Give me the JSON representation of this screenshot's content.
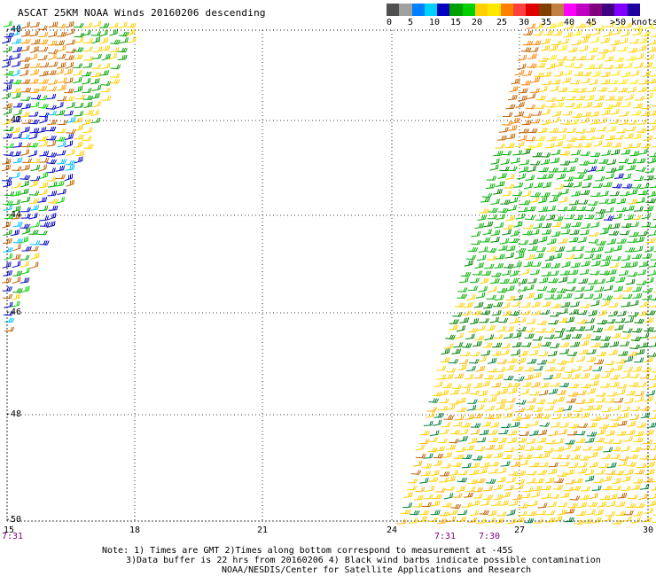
{
  "header": {
    "title": "ASCAT 25KM NOAA Winds 20160206 descending"
  },
  "legend": {
    "labels": [
      "0",
      "5",
      "10",
      "15",
      "20",
      "25",
      "30",
      "35",
      "40",
      "45",
      ">50 knots"
    ],
    "colors": [
      "#505050",
      "#a0a0a0",
      "#0080ff",
      "#00d0ff",
      "#0000c0",
      "#00a000",
      "#00d000",
      "#ffd000",
      "#ffe800",
      "#ff8000",
      "#ff4040",
      "#e00000",
      "#804000",
      "#c08040",
      "#ff00ff",
      "#c000c0",
      "#800080",
      "#400080",
      "#8000ff",
      "#2000a0"
    ]
  },
  "axes": {
    "lat_labels": [
      "-40",
      "-42",
      "-44",
      "-46",
      "-48",
      "-50"
    ],
    "lon_labels": [
      "15",
      "18",
      "21",
      "24",
      "27",
      "30"
    ]
  },
  "times": [
    "7:31",
    "7:31",
    "7:30"
  ],
  "notes": [
    "Note: 1) Times are GMT 2)Times along bottom correspond to measurement at -45S",
    "3)Data buffer is 22 hrs from 20160206 4) Black wind barbs indicate possible contamination",
    "NOAA/NESDIS/Center for Satellite Applications and Research"
  ],
  "wind_swaths": [
    {
      "name": "western-swath",
      "speed_range_knots": [
        5,
        30
      ]
    },
    {
      "name": "eastern-swath",
      "speed_range_knots": [
        10,
        30
      ]
    }
  ]
}
